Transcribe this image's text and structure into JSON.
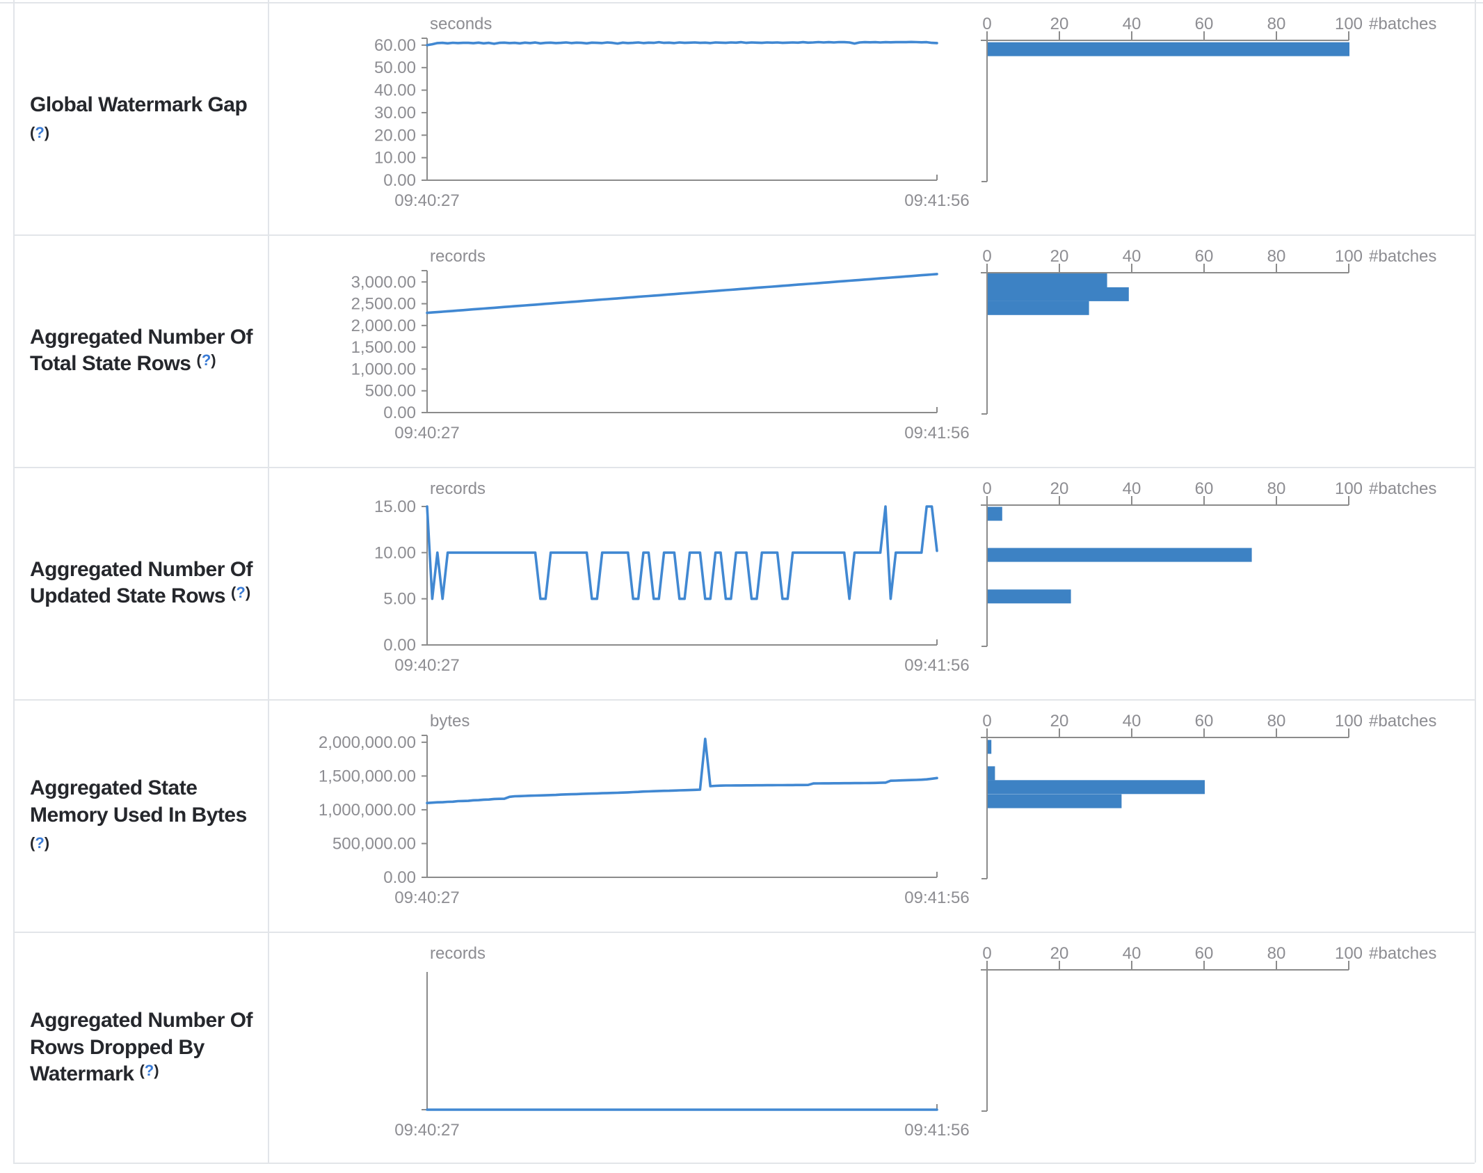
{
  "help": {
    "open": "(",
    "q": "?",
    "close": ")"
  },
  "axis": {
    "x_start": "09:40:27",
    "x_end": "09:41:56",
    "hist_unit": "#batches",
    "hist_ticks": [
      0,
      20,
      40,
      60,
      80,
      100
    ]
  },
  "colors": {
    "line": "#4188d2",
    "bar": "#3d82c4",
    "axis": "#8b8b8b",
    "tick_text": "#8d8d92",
    "border": "#e2e5e9",
    "label_text": "#25272c",
    "help_blue": "#3a7bd5"
  },
  "rows": [
    {
      "id": "global-watermark-gap",
      "label": {
        "lines": [
          "Global Watermark Gap"
        ],
        "help_own_line": true
      },
      "timeline": {
        "type": "line",
        "unit": "seconds",
        "domain_max": 61.5,
        "y_ticks": [
          {
            "v": 60,
            "t": "60.00"
          },
          {
            "v": 50,
            "t": "50.00"
          },
          {
            "v": 40,
            "t": "40.00"
          },
          {
            "v": 30,
            "t": "30.00"
          },
          {
            "v": 20,
            "t": "20.00"
          },
          {
            "v": 10,
            "t": "10.00"
          },
          {
            "v": 0,
            "t": "0.00"
          }
        ],
        "values": [
          60.0,
          60.4,
          60.9,
          61.0,
          60.8,
          61.05,
          60.9,
          61.0,
          61.0,
          60.85,
          61.1,
          60.8,
          61.0,
          60.6,
          61.0,
          61.1,
          60.9,
          61.0,
          60.8,
          61.1,
          60.9,
          61.15,
          60.8,
          61.0,
          61.1,
          60.9,
          61.0,
          61.2,
          60.9,
          61.1,
          61.0,
          60.8,
          61.1,
          61.0,
          60.9,
          61.2,
          61.0,
          60.7,
          61.1,
          60.9,
          61.0,
          61.2,
          60.9,
          61.1,
          61.0,
          61.3,
          61.0,
          61.1,
          60.9,
          61.2,
          61.0,
          61.1,
          61.2,
          61.0,
          61.1,
          60.9,
          61.2,
          61.1,
          61.0,
          61.2,
          61.1,
          61.3,
          61.0,
          61.2,
          61.1,
          61.0,
          61.2,
          61.1,
          61.2,
          61.0,
          61.1,
          61.2,
          61.1,
          61.3,
          61.1,
          61.2,
          61.35,
          61.2,
          61.3,
          61.2,
          61.35,
          61.3,
          61.2,
          60.7,
          61.2,
          61.3,
          61.25,
          61.3,
          61.2,
          61.3,
          61.25,
          61.3,
          61.35,
          61.3,
          61.4,
          61.35,
          61.25,
          61.3,
          61.0,
          60.9
        ]
      },
      "histogram": {
        "type": "bar",
        "bars": [
          {
            "count": 100,
            "frac": 0.054
          }
        ]
      }
    },
    {
      "id": "aggregated-number-of-total-state-rows",
      "label": {
        "lines": [
          "Aggregated Number Of",
          "Total State Rows"
        ],
        "help_own_line": false
      },
      "timeline": {
        "type": "line",
        "unit": "records",
        "domain_max": 3180,
        "y_ticks": [
          {
            "v": 3000,
            "t": "3,000.00"
          },
          {
            "v": 2500,
            "t": "2,500.00"
          },
          {
            "v": 2000,
            "t": "2,000.00"
          },
          {
            "v": 1500,
            "t": "1,500.00"
          },
          {
            "v": 1000,
            "t": "1,000.00"
          },
          {
            "v": 500,
            "t": "500.00"
          },
          {
            "v": 0,
            "t": "0.00"
          }
        ],
        "values": [
          2290,
          2299,
          2308,
          2317,
          2326,
          2335,
          2344,
          2353,
          2362,
          2371,
          2380,
          2389,
          2398,
          2407,
          2416,
          2425,
          2434,
          2443,
          2452,
          2461,
          2470,
          2479,
          2488,
          2497,
          2506,
          2515,
          2524,
          2533,
          2542,
          2551,
          2560,
          2569,
          2578,
          2587,
          2596,
          2605,
          2614,
          2623,
          2632,
          2641,
          2650,
          2659,
          2668,
          2677,
          2686,
          2695,
          2704,
          2713,
          2722,
          2731,
          2740,
          2749,
          2758,
          2767,
          2776,
          2785,
          2794,
          2803,
          2812,
          2821,
          2830,
          2839,
          2848,
          2857,
          2866,
          2875,
          2884,
          2893,
          2902,
          2911,
          2920,
          2929,
          2938,
          2947,
          2956,
          2965,
          2974,
          2983,
          2992,
          3001,
          3010,
          3019,
          3028,
          3037,
          3046,
          3055,
          3064,
          3073,
          3082,
          3091,
          3100,
          3109,
          3118,
          3127,
          3136,
          3145,
          3154,
          3163,
          3172,
          3181
        ]
      },
      "histogram": {
        "type": "bar",
        "bars": [
          {
            "count": 33,
            "frac": 0.045
          },
          {
            "count": 39,
            "frac": 0.145
          },
          {
            "count": 28,
            "frac": 0.245
          }
        ]
      }
    },
    {
      "id": "aggregated-number-of-updated-state-rows",
      "label": {
        "lines": [
          "Aggregated Number Of",
          "Updated State Rows"
        ],
        "help_own_line": false
      },
      "timeline": {
        "type": "line",
        "unit": "records",
        "domain_max": 15,
        "y_ticks": [
          {
            "v": 15,
            "t": "15.00"
          },
          {
            "v": 10,
            "t": "10.00"
          },
          {
            "v": 5,
            "t": "5.00"
          },
          {
            "v": 0,
            "t": "0.00"
          }
        ],
        "values": [
          15,
          5,
          10,
          5,
          10,
          10,
          10,
          10,
          10,
          10,
          10,
          10,
          10,
          10,
          10,
          10,
          10,
          10,
          10,
          10,
          10,
          10,
          5,
          5,
          10,
          10,
          10,
          10,
          10,
          10,
          10,
          10,
          5,
          5,
          10,
          10,
          10,
          10,
          10,
          10,
          5,
          5,
          10,
          10,
          5,
          5,
          10,
          10,
          10,
          5,
          5,
          10,
          10,
          10,
          5,
          5,
          10,
          10,
          5,
          5,
          10,
          10,
          10,
          5,
          5,
          10,
          10,
          10,
          10,
          5,
          5,
          10,
          10,
          10,
          10,
          10,
          10,
          10,
          10,
          10,
          10,
          10,
          5,
          10,
          10,
          10,
          10,
          10,
          10,
          15,
          5,
          10,
          10,
          10,
          10,
          10,
          10,
          15,
          15,
          10.2
        ]
      },
      "histogram": {
        "type": "bar",
        "bars": [
          {
            "count": 4,
            "frac": 0.053
          },
          {
            "count": 73,
            "frac": 0.35
          },
          {
            "count": 23,
            "frac": 0.65
          }
        ]
      }
    },
    {
      "id": "aggregated-state-memory-used-in-bytes",
      "label": {
        "lines": [
          "Aggregated State",
          "Memory Used In Bytes"
        ],
        "help_own_line": true
      },
      "timeline": {
        "type": "line",
        "unit": "bytes",
        "domain_max": 2050000,
        "y_ticks": [
          {
            "v": 2000000,
            "t": "2,000,000.00"
          },
          {
            "v": 1500000,
            "t": "1,500,000.00"
          },
          {
            "v": 1000000,
            "t": "1,000,000.00"
          },
          {
            "v": 500000,
            "t": "500,000.00"
          },
          {
            "v": 0,
            "t": "0.00"
          }
        ],
        "values": [
          1100000,
          1105000,
          1110000,
          1112000,
          1118000,
          1120000,
          1128000,
          1130000,
          1132000,
          1140000,
          1142000,
          1150000,
          1152000,
          1160000,
          1162000,
          1163000,
          1192000,
          1200000,
          1202000,
          1205000,
          1208000,
          1210000,
          1212000,
          1215000,
          1218000,
          1220000,
          1225000,
          1228000,
          1230000,
          1232000,
          1235000,
          1238000,
          1240000,
          1242000,
          1245000,
          1248000,
          1250000,
          1252000,
          1255000,
          1258000,
          1262000,
          1265000,
          1270000,
          1272000,
          1275000,
          1278000,
          1280000,
          1282000,
          1285000,
          1288000,
          1290000,
          1292000,
          1295000,
          1298000,
          2050000,
          1350000,
          1355000,
          1358000,
          1360000,
          1360000,
          1361000,
          1361000,
          1362000,
          1362000,
          1363000,
          1363000,
          1364000,
          1364000,
          1365000,
          1365000,
          1366000,
          1366000,
          1367000,
          1367000,
          1368000,
          1390000,
          1391000,
          1392000,
          1392000,
          1393000,
          1393000,
          1394000,
          1394000,
          1395000,
          1395000,
          1396000,
          1397000,
          1398000,
          1400000,
          1402000,
          1430000,
          1432000,
          1435000,
          1438000,
          1440000,
          1442000,
          1445000,
          1450000,
          1460000,
          1470000
        ]
      },
      "histogram": {
        "type": "bar",
        "bars": [
          {
            "count": 1,
            "frac": 0.058
          },
          {
            "count": 2,
            "frac": 0.248
          },
          {
            "count": 60,
            "frac": 0.348
          },
          {
            "count": 37,
            "frac": 0.45
          }
        ]
      }
    },
    {
      "id": "aggregated-number-of-rows-dropped-by-watermark",
      "label": {
        "lines": [
          "Aggregated Number Of",
          "Rows Dropped By",
          "Watermark"
        ],
        "help_own_line": false
      },
      "timeline": {
        "type": "line",
        "unit": "records",
        "domain_max": 1,
        "y_ticks": [],
        "values": [
          0,
          0,
          0,
          0,
          0,
          0,
          0,
          0,
          0,
          0,
          0,
          0,
          0,
          0,
          0,
          0,
          0,
          0,
          0,
          0,
          0,
          0,
          0,
          0,
          0,
          0,
          0,
          0,
          0,
          0,
          0,
          0,
          0,
          0,
          0,
          0,
          0,
          0,
          0,
          0,
          0,
          0,
          0,
          0,
          0,
          0,
          0,
          0,
          0,
          0,
          0,
          0,
          0,
          0,
          0,
          0,
          0,
          0,
          0,
          0,
          0,
          0,
          0,
          0,
          0,
          0,
          0,
          0,
          0,
          0,
          0,
          0,
          0,
          0,
          0,
          0,
          0,
          0,
          0,
          0,
          0,
          0,
          0,
          0,
          0,
          0,
          0,
          0,
          0,
          0,
          0,
          0,
          0,
          0,
          0,
          0,
          0,
          0,
          0,
          0
        ]
      },
      "histogram": {
        "type": "bar",
        "bars": []
      }
    }
  ]
}
